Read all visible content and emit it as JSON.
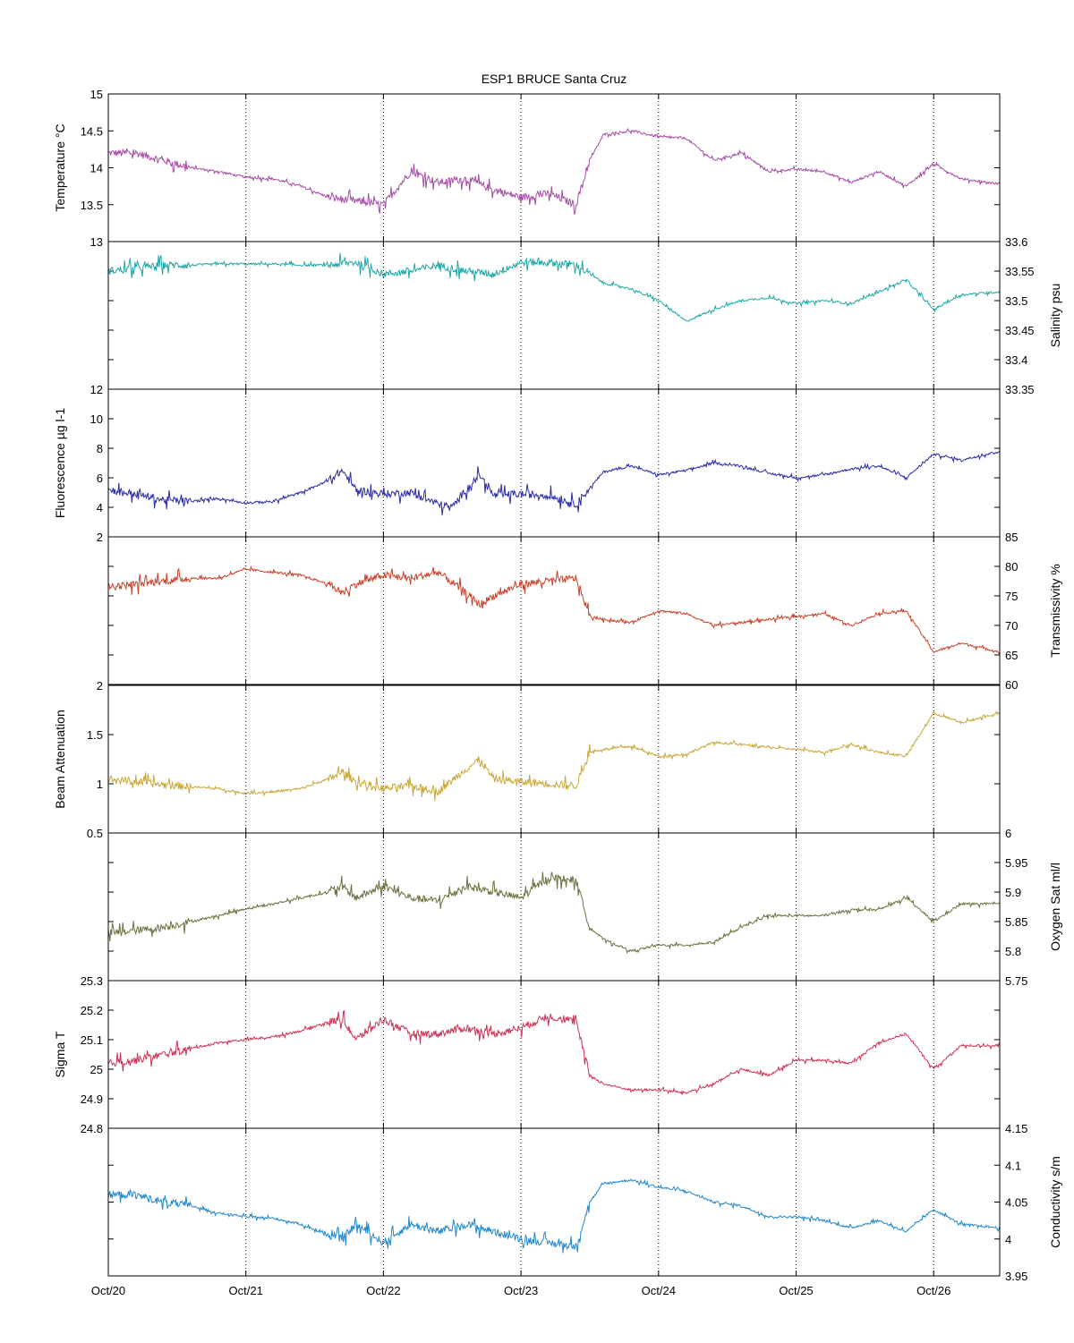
{
  "chart_data": {
    "type": "line",
    "title": "ESP1 BRUCE Santa Cruz",
    "x_ticks": [
      "Oct/20",
      "Oct/21",
      "Oct/22",
      "Oct/23",
      "Oct/24",
      "Oct/25",
      "Oct/26"
    ],
    "xlim": [
      0,
      6.48
    ],
    "grid": "vertical dotted at day ticks",
    "panels": [
      {
        "id": "temperature",
        "ylabel": "Temperature °C",
        "axis_side": "left",
        "ylim": [
          13,
          15
        ],
        "y_ticks": [
          "13",
          "13.5",
          "14",
          "14.5",
          "15"
        ],
        "color": "#A64CA6",
        "x": [
          0,
          0.2,
          0.4,
          0.6,
          0.8,
          1.0,
          1.2,
          1.4,
          1.6,
          1.8,
          2.0,
          2.2,
          2.4,
          2.6,
          2.8,
          3.0,
          3.2,
          3.4,
          3.5,
          3.6,
          3.8,
          4.0,
          4.2,
          4.4,
          4.6,
          4.8,
          5.0,
          5.2,
          5.4,
          5.6,
          5.8,
          6.0,
          6.2,
          6.48
        ],
        "values": [
          14.2,
          14.2,
          14.1,
          14.0,
          13.95,
          13.87,
          13.85,
          13.75,
          13.6,
          13.55,
          13.5,
          13.95,
          13.8,
          13.85,
          13.7,
          13.6,
          13.65,
          13.5,
          14.1,
          14.45,
          14.5,
          14.42,
          14.4,
          14.1,
          14.2,
          13.95,
          13.98,
          13.95,
          13.8,
          13.95,
          13.75,
          14.05,
          13.85,
          13.78
        ]
      },
      {
        "id": "salinity",
        "ylabel": "Salinity psu",
        "axis_side": "right",
        "ylim": [
          33.35,
          33.6
        ],
        "y_ticks": [
          "33.35",
          "33.4",
          "33.45",
          "33.5",
          "33.55",
          "33.6"
        ],
        "color": "#20A8A8",
        "x": [
          0,
          0.2,
          0.4,
          0.6,
          0.8,
          1.0,
          1.2,
          1.4,
          1.6,
          1.8,
          2.0,
          2.2,
          2.4,
          2.6,
          2.8,
          3.0,
          3.2,
          3.4,
          3.6,
          3.8,
          4.0,
          4.2,
          4.4,
          4.6,
          4.8,
          5.0,
          5.2,
          5.4,
          5.6,
          5.8,
          6.0,
          6.2,
          6.48
        ],
        "values": [
          33.55,
          33.555,
          33.56,
          33.56,
          33.562,
          33.562,
          33.562,
          33.56,
          33.56,
          33.565,
          33.545,
          33.55,
          33.56,
          33.55,
          33.545,
          33.565,
          33.565,
          33.56,
          33.53,
          33.52,
          33.5,
          33.465,
          33.485,
          33.5,
          33.505,
          33.495,
          33.5,
          33.495,
          33.515,
          33.535,
          33.485,
          33.51,
          33.515
        ]
      },
      {
        "id": "fluorescence",
        "ylabel": "Fluorescence µg l-1",
        "axis_side": "left",
        "ylim": [
          2,
          12
        ],
        "y_ticks": [
          "2",
          "4",
          "6",
          "8",
          "10",
          "12"
        ],
        "color": "#2B2BA8",
        "x": [
          0,
          0.2,
          0.4,
          0.6,
          0.8,
          1.0,
          1.2,
          1.4,
          1.6,
          1.7,
          1.8,
          2.0,
          2.2,
          2.4,
          2.5,
          2.6,
          2.7,
          2.8,
          3.0,
          3.2,
          3.4,
          3.6,
          3.8,
          4.0,
          4.2,
          4.4,
          4.6,
          4.8,
          5.0,
          5.2,
          5.4,
          5.6,
          5.8,
          6.0,
          6.2,
          6.48
        ],
        "values": [
          5.2,
          4.9,
          4.5,
          4.4,
          4.6,
          4.3,
          4.4,
          5.0,
          5.8,
          6.5,
          5.2,
          4.9,
          5.0,
          4.2,
          4.0,
          5.2,
          6.2,
          4.8,
          4.9,
          4.8,
          4.2,
          6.4,
          6.8,
          6.2,
          6.5,
          7.0,
          6.8,
          6.3,
          6.0,
          6.2,
          6.6,
          6.8,
          6.0,
          7.6,
          7.2,
          7.8
        ]
      },
      {
        "id": "transmissivity",
        "ylabel": "Transmissivity %",
        "axis_side": "right",
        "ylim": [
          60,
          85
        ],
        "y_ticks": [
          "60",
          "65",
          "70",
          "75",
          "80",
          "85"
        ],
        "color": "#C8412B",
        "x": [
          0,
          0.2,
          0.4,
          0.6,
          0.8,
          1.0,
          1.2,
          1.4,
          1.6,
          1.7,
          1.8,
          2.0,
          2.2,
          2.4,
          2.6,
          2.7,
          2.8,
          3.0,
          3.2,
          3.4,
          3.5,
          3.6,
          3.8,
          4.0,
          4.2,
          4.4,
          4.6,
          4.8,
          5.0,
          5.2,
          5.4,
          5.6,
          5.8,
          6.0,
          6.2,
          6.48
        ],
        "values": [
          76.5,
          77.0,
          77.5,
          78.0,
          78.0,
          79.5,
          79.0,
          78.5,
          77.0,
          75.5,
          77.0,
          78.5,
          78.0,
          79.0,
          75.5,
          73.5,
          75.0,
          77.0,
          77.5,
          78.0,
          71.5,
          71.0,
          70.5,
          72.5,
          72.0,
          70.0,
          70.5,
          71.0,
          71.5,
          72.0,
          70.0,
          72.0,
          72.5,
          65.5,
          67.0,
          65.5
        ]
      },
      {
        "id": "beam_attenuation",
        "ylabel": "Beam Attenuation",
        "axis_side": "left",
        "ylim": [
          0.5,
          2
        ],
        "y_ticks": [
          "0.5",
          "1",
          "1.5",
          "2"
        ],
        "color": "#C8A83A",
        "x": [
          0,
          0.2,
          0.4,
          0.6,
          0.8,
          1.0,
          1.2,
          1.4,
          1.6,
          1.7,
          1.8,
          2.0,
          2.2,
          2.4,
          2.6,
          2.7,
          2.8,
          3.0,
          3.2,
          3.4,
          3.5,
          3.6,
          3.8,
          4.0,
          4.2,
          4.4,
          4.6,
          4.8,
          5.0,
          5.2,
          5.4,
          5.6,
          5.8,
          6.0,
          6.2,
          6.48
        ],
        "values": [
          1.05,
          1.02,
          0.99,
          0.97,
          0.95,
          0.9,
          0.92,
          0.95,
          1.05,
          1.12,
          1.02,
          0.95,
          0.98,
          0.92,
          1.15,
          1.25,
          1.05,
          1.02,
          1.0,
          0.98,
          1.32,
          1.35,
          1.38,
          1.28,
          1.3,
          1.42,
          1.4,
          1.37,
          1.35,
          1.32,
          1.4,
          1.32,
          1.28,
          1.72,
          1.62,
          1.72
        ]
      },
      {
        "id": "oxygen_sat",
        "ylabel": "Oxygen Sat ml/l",
        "axis_side": "right",
        "ylim": [
          5.75,
          6
        ],
        "y_ticks": [
          "5.75",
          "5.8",
          "5.85",
          "5.9",
          "5.95",
          "6"
        ],
        "color": "#707040",
        "x": [
          0,
          0.2,
          0.4,
          0.6,
          0.8,
          1.0,
          1.2,
          1.4,
          1.6,
          1.7,
          1.8,
          2.0,
          2.2,
          2.4,
          2.6,
          2.8,
          3.0,
          3.2,
          3.4,
          3.5,
          3.6,
          3.8,
          4.0,
          4.2,
          4.4,
          4.6,
          4.8,
          5.0,
          5.2,
          5.4,
          5.6,
          5.8,
          6.0,
          6.2,
          6.48
        ],
        "values": [
          5.83,
          5.835,
          5.84,
          5.85,
          5.86,
          5.872,
          5.88,
          5.89,
          5.9,
          5.91,
          5.89,
          5.91,
          5.89,
          5.885,
          5.91,
          5.9,
          5.89,
          5.925,
          5.92,
          5.84,
          5.82,
          5.8,
          5.81,
          5.81,
          5.815,
          5.84,
          5.86,
          5.86,
          5.86,
          5.87,
          5.87,
          5.89,
          5.85,
          5.88,
          5.88
        ]
      },
      {
        "id": "sigma_t",
        "ylabel": "Sigma T",
        "axis_side": "left",
        "ylim": [
          24.8,
          25.3
        ],
        "y_ticks": [
          "24.8",
          "24.9",
          "25",
          "25.1",
          "25.2",
          "25.3"
        ],
        "color": "#CC3355",
        "x": [
          0,
          0.2,
          0.4,
          0.6,
          0.8,
          1.0,
          1.2,
          1.4,
          1.6,
          1.7,
          1.8,
          2.0,
          2.2,
          2.4,
          2.6,
          2.8,
          3.0,
          3.2,
          3.4,
          3.5,
          3.6,
          3.8,
          4.0,
          4.2,
          4.4,
          4.6,
          4.8,
          5.0,
          5.2,
          5.4,
          5.6,
          5.8,
          6.0,
          6.2,
          6.48
        ],
        "values": [
          25.02,
          25.03,
          25.05,
          25.07,
          25.09,
          25.1,
          25.11,
          25.13,
          25.16,
          25.17,
          25.1,
          25.17,
          25.12,
          25.12,
          25.14,
          25.12,
          25.14,
          25.18,
          25.16,
          24.98,
          24.95,
          24.93,
          24.93,
          24.92,
          24.95,
          25.0,
          24.98,
          25.03,
          25.03,
          25.02,
          25.09,
          25.12,
          25.0,
          25.08,
          25.08
        ]
      },
      {
        "id": "conductivity",
        "ylabel": "Conductivity s/m",
        "axis_side": "right",
        "ylim": [
          3.95,
          4.15
        ],
        "y_ticks": [
          "3.95",
          "4",
          "4.05",
          "4.1",
          "4.15"
        ],
        "color": "#2288CC",
        "x": [
          0,
          0.2,
          0.4,
          0.6,
          0.8,
          1.0,
          1.2,
          1.4,
          1.6,
          1.7,
          1.8,
          2.0,
          2.2,
          2.4,
          2.6,
          2.8,
          3.0,
          3.2,
          3.4,
          3.5,
          3.6,
          3.8,
          4.0,
          4.2,
          4.4,
          4.6,
          4.8,
          5.0,
          5.2,
          5.4,
          5.6,
          5.8,
          6.0,
          6.2,
          6.48
        ],
        "values": [
          4.06,
          4.06,
          4.05,
          4.045,
          4.035,
          4.03,
          4.028,
          4.02,
          4.005,
          4.0,
          4.02,
          3.995,
          4.02,
          4.01,
          4.02,
          4.01,
          4.0,
          3.995,
          3.99,
          4.05,
          4.075,
          4.08,
          4.07,
          4.065,
          4.05,
          4.045,
          4.03,
          4.03,
          4.025,
          4.015,
          4.025,
          4.01,
          4.04,
          4.02,
          4.015
        ]
      }
    ]
  }
}
